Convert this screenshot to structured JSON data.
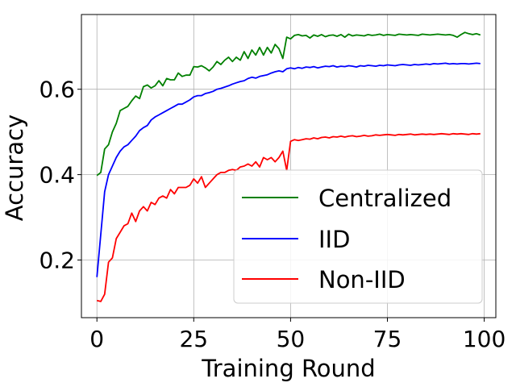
{
  "chart_data": {
    "type": "line",
    "title": "",
    "xlabel": "Training Round",
    "ylabel": "Accuracy",
    "xlim": [
      -4,
      103
    ],
    "ylim": [
      0.065,
      0.775
    ],
    "xticks": [
      0,
      25,
      50,
      75,
      100
    ],
    "yticks": [
      0.2,
      0.4,
      0.6
    ],
    "xtick_labels": [
      "0",
      "25",
      "50",
      "75",
      "100"
    ],
    "ytick_labels": [
      "0.2",
      "0.4",
      "0.6"
    ],
    "grid": true,
    "legend_position": "lower-right",
    "x": [
      0,
      1,
      2,
      3,
      4,
      5,
      6,
      7,
      8,
      9,
      10,
      11,
      12,
      13,
      14,
      15,
      16,
      17,
      18,
      19,
      20,
      21,
      22,
      23,
      24,
      25,
      26,
      27,
      28,
      29,
      30,
      31,
      32,
      33,
      34,
      35,
      36,
      37,
      38,
      39,
      40,
      41,
      42,
      43,
      44,
      45,
      46,
      47,
      48,
      49,
      50,
      51,
      52,
      53,
      54,
      55,
      56,
      57,
      58,
      59,
      60,
      61,
      62,
      63,
      64,
      65,
      66,
      67,
      68,
      69,
      70,
      71,
      72,
      73,
      74,
      75,
      76,
      77,
      78,
      79,
      80,
      81,
      82,
      83,
      84,
      85,
      86,
      87,
      88,
      89,
      90,
      91,
      92,
      93,
      94,
      95,
      96,
      97,
      98,
      99
    ],
    "series": [
      {
        "name": "Centralized",
        "color": "#008000",
        "values": [
          0.398,
          0.405,
          0.46,
          0.47,
          0.5,
          0.52,
          0.55,
          0.555,
          0.56,
          0.573,
          0.584,
          0.578,
          0.606,
          0.61,
          0.603,
          0.608,
          0.62,
          0.608,
          0.625,
          0.622,
          0.622,
          0.638,
          0.63,
          0.633,
          0.633,
          0.653,
          0.652,
          0.655,
          0.65,
          0.643,
          0.652,
          0.665,
          0.658,
          0.668,
          0.675,
          0.665,
          0.675,
          0.668,
          0.688,
          0.672,
          0.692,
          0.68,
          0.698,
          0.68,
          0.698,
          0.685,
          0.705,
          0.695,
          0.672,
          0.722,
          0.718,
          0.726,
          0.728,
          0.725,
          0.726,
          0.72,
          0.727,
          0.724,
          0.728,
          0.723,
          0.726,
          0.727,
          0.724,
          0.728,
          0.722,
          0.729,
          0.725,
          0.727,
          0.726,
          0.725,
          0.728,
          0.726,
          0.727,
          0.729,
          0.726,
          0.728,
          0.727,
          0.726,
          0.729,
          0.728,
          0.727,
          0.728,
          0.727,
          0.726,
          0.729,
          0.728,
          0.727,
          0.728,
          0.729,
          0.728,
          0.727,
          0.728,
          0.726,
          0.722,
          0.728,
          0.733,
          0.73,
          0.728,
          0.73,
          0.727
        ]
      },
      {
        "name": "IID",
        "color": "#0000ff",
        "values": [
          0.16,
          0.26,
          0.36,
          0.4,
          0.42,
          0.44,
          0.455,
          0.465,
          0.47,
          0.48,
          0.49,
          0.503,
          0.51,
          0.515,
          0.528,
          0.535,
          0.54,
          0.545,
          0.55,
          0.555,
          0.56,
          0.565,
          0.565,
          0.57,
          0.575,
          0.582,
          0.585,
          0.585,
          0.59,
          0.592,
          0.595,
          0.6,
          0.602,
          0.605,
          0.608,
          0.612,
          0.615,
          0.618,
          0.62,
          0.625,
          0.628,
          0.626,
          0.63,
          0.632,
          0.634,
          0.638,
          0.641,
          0.643,
          0.641,
          0.648,
          0.65,
          0.648,
          0.651,
          0.649,
          0.652,
          0.651,
          0.653,
          0.65,
          0.652,
          0.654,
          0.653,
          0.655,
          0.652,
          0.654,
          0.653,
          0.655,
          0.654,
          0.652,
          0.655,
          0.654,
          0.656,
          0.655,
          0.654,
          0.656,
          0.655,
          0.657,
          0.656,
          0.655,
          0.657,
          0.658,
          0.657,
          0.656,
          0.658,
          0.657,
          0.658,
          0.659,
          0.658,
          0.66,
          0.659,
          0.66,
          0.661,
          0.659,
          0.66,
          0.659,
          0.66,
          0.66,
          0.659,
          0.66,
          0.661,
          0.66
        ]
      },
      {
        "name": "Non-IID",
        "color": "#ff0000",
        "values": [
          0.105,
          0.103,
          0.12,
          0.195,
          0.205,
          0.25,
          0.265,
          0.28,
          0.285,
          0.31,
          0.29,
          0.315,
          0.325,
          0.315,
          0.335,
          0.33,
          0.345,
          0.35,
          0.345,
          0.365,
          0.355,
          0.37,
          0.37,
          0.37,
          0.375,
          0.39,
          0.38,
          0.395,
          0.37,
          0.38,
          0.39,
          0.4,
          0.405,
          0.405,
          0.41,
          0.412,
          0.41,
          0.418,
          0.42,
          0.425,
          0.42,
          0.43,
          0.418,
          0.44,
          0.435,
          0.44,
          0.43,
          0.44,
          0.455,
          0.41,
          0.478,
          0.482,
          0.48,
          0.482,
          0.484,
          0.483,
          0.486,
          0.484,
          0.487,
          0.488,
          0.486,
          0.489,
          0.488,
          0.49,
          0.488,
          0.49,
          0.491,
          0.489,
          0.49,
          0.492,
          0.49,
          0.491,
          0.493,
          0.492,
          0.493,
          0.494,
          0.493,
          0.492,
          0.494,
          0.493,
          0.494,
          0.495,
          0.493,
          0.494,
          0.495,
          0.494,
          0.495,
          0.494,
          0.495,
          0.496,
          0.495,
          0.494,
          0.496,
          0.495,
          0.496,
          0.495,
          0.494,
          0.496,
          0.495,
          0.496
        ]
      }
    ]
  }
}
